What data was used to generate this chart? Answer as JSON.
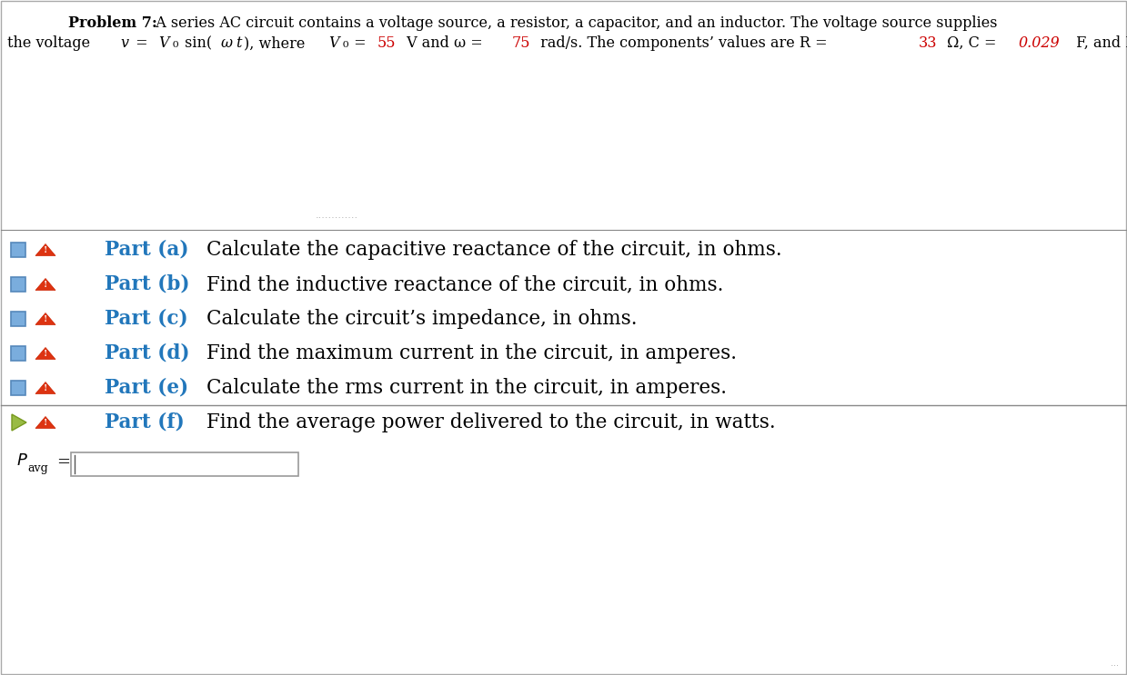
{
  "background_color": "#ffffff",
  "border_color": "#aaaaaa",
  "part_label_color": "#2277bb",
  "part_text_color": "#000000",
  "header_fontsize": 11.5,
  "part_fontsize": 15.5,
  "parts": [
    {
      "label": "Part (a)",
      "text": "Calculate the capacitive reactance of the circuit, in ohms.",
      "icon_square": true,
      "active": false
    },
    {
      "label": "Part (b)",
      "text": "Find the inductive reactance of the circuit, in ohms.",
      "icon_square": true,
      "active": false
    },
    {
      "label": "Part (c)",
      "text": "Calculate the circuit’s impedance, in ohms.",
      "icon_square": true,
      "active": false
    },
    {
      "label": "Part (d)",
      "text": "Find the maximum current in the circuit, in amperes.",
      "icon_square": true,
      "active": false
    },
    {
      "label": "Part (e)",
      "text": "Calculate the rms current in the circuit, in amperes.",
      "icon_square": true,
      "active": false
    },
    {
      "label": "Part (f)",
      "text": "Find the average power delivered to the circuit, in watts.",
      "icon_square": false,
      "active": true
    }
  ],
  "square_color": "#7aaddd",
  "square_edge_color": "#5588bb",
  "triangle_color": "#dd3311",
  "triangle_edge_color": "#cc2200",
  "green_arrow_color": "#99bb44",
  "green_arrow_edge": "#77991f",
  "divider_color": "#888888",
  "input_box_color": "#cccccc",
  "red_value_color": "#cc0000"
}
